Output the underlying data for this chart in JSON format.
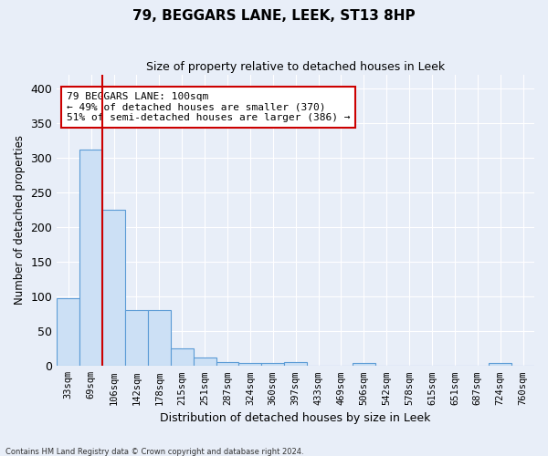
{
  "title": "79, BEGGARS LANE, LEEK, ST13 8HP",
  "subtitle": "Size of property relative to detached houses in Leek",
  "xlabel": "Distribution of detached houses by size in Leek",
  "ylabel": "Number of detached properties",
  "footnote1": "Contains HM Land Registry data © Crown copyright and database right 2024.",
  "bar_labels": [
    "33sqm",
    "69sqm",
    "106sqm",
    "142sqm",
    "178sqm",
    "215sqm",
    "251sqm",
    "287sqm",
    "324sqm",
    "360sqm",
    "397sqm",
    "433sqm",
    "469sqm",
    "506sqm",
    "542sqm",
    "578sqm",
    "615sqm",
    "651sqm",
    "687sqm",
    "724sqm",
    "760sqm"
  ],
  "bar_values": [
    98,
    312,
    225,
    80,
    80,
    25,
    12,
    6,
    4,
    4,
    6,
    0,
    0,
    5,
    0,
    0,
    0,
    0,
    0,
    4,
    0
  ],
  "bar_color": "#cce0f5",
  "bar_edge_color": "#5b9bd5",
  "vline_x_index": 1,
  "vline_color": "#cc0000",
  "annotation_text": "79 BEGGARS LANE: 100sqm\n← 49% of detached houses are smaller (370)\n51% of semi-detached houses are larger (386) →",
  "annotation_box_color": "#cc0000",
  "annotation_text_color": "#000000",
  "ylim": [
    0,
    420
  ],
  "yticks": [
    0,
    50,
    100,
    150,
    200,
    250,
    300,
    350,
    400
  ],
  "bg_color": "#e8eef8",
  "plot_bg_color": "#e8eef8",
  "grid_color": "#ffffff",
  "title_fontsize": 11,
  "subtitle_fontsize": 9
}
